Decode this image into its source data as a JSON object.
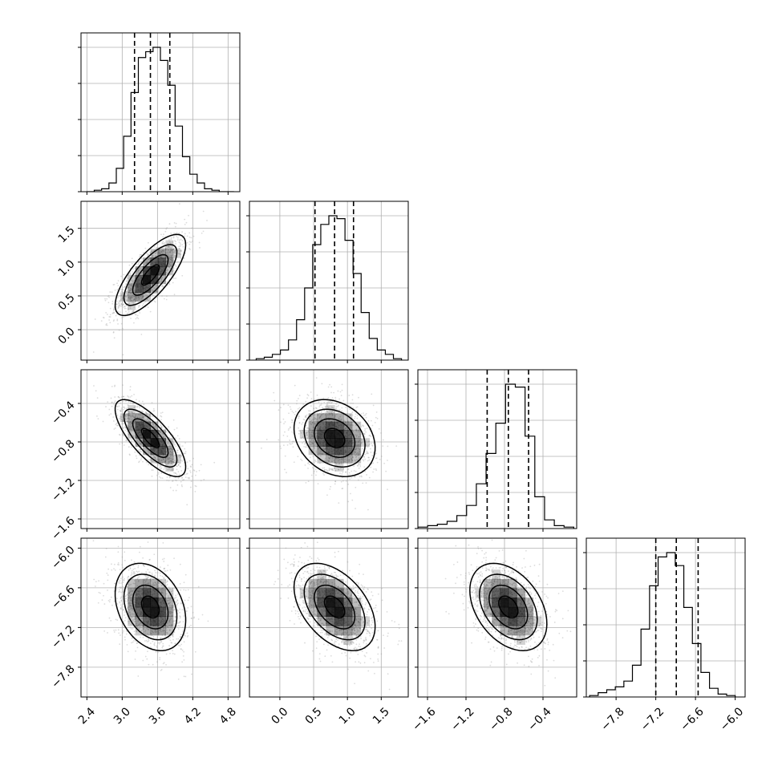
{
  "chart_data": {
    "type": "corner",
    "title": "",
    "num_parameters": 4,
    "parameters": [
      {
        "index": 0,
        "xlim": [
          2.3,
          5.0
        ],
        "ticks": [
          2.4,
          3.0,
          3.6,
          4.2,
          4.8
        ],
        "tick_labels": [
          "2.4",
          "3.0",
          "3.6",
          "4.2",
          "4.8"
        ],
        "mean": 3.48,
        "sd": 0.3,
        "quantiles": [
          3.21,
          3.48,
          3.81
        ],
        "histogram": {
          "edges_range": [
            2.4,
            4.9
          ],
          "counts": [
            0,
            1,
            2,
            6,
            16,
            38,
            68,
            92,
            96,
            99,
            90,
            73,
            45,
            24,
            12,
            6,
            2,
            1,
            0,
            0
          ]
        }
      },
      {
        "index": 1,
        "xlim": [
          -0.45,
          1.9
        ],
        "ticks": [
          0.0,
          0.5,
          1.0,
          1.5
        ],
        "tick_labels": [
          "0.0",
          "0.5",
          "1.0",
          "1.5"
        ],
        "mean": 0.81,
        "sd": 0.3,
        "quantiles": [
          0.52,
          0.81,
          1.09
        ],
        "histogram": {
          "edges_range": [
            -0.35,
            1.8
          ],
          "counts": [
            1,
            2,
            4,
            7,
            14,
            28,
            50,
            80,
            94,
            100,
            98,
            83,
            60,
            33,
            15,
            7,
            4,
            1
          ]
        }
      },
      {
        "index": 2,
        "xlim": [
          -1.7,
          -0.05
        ],
        "ticks": [
          -1.6,
          -1.2,
          -0.8,
          -0.4
        ],
        "tick_labels": [
          "−1.6",
          "−1.2",
          "−0.8",
          "−0.4"
        ],
        "mean": -0.76,
        "sd": 0.2,
        "quantiles": [
          -0.98,
          -0.76,
          -0.55
        ],
        "histogram": {
          "edges_range": [
            -1.7,
            -0.08
          ],
          "counts": [
            1,
            2,
            3,
            5,
            9,
            16,
            31,
            52,
            73,
            100,
            98,
            64,
            22,
            6,
            2,
            1
          ]
        }
      },
      {
        "index": 3,
        "xlim": [
          -8.25,
          -5.85
        ],
        "ticks": [
          -7.8,
          -7.2,
          -6.6,
          -6.0
        ],
        "tick_labels": [
          "−7.8",
          "−7.2",
          "−6.6",
          "−6.0"
        ],
        "mean": -6.89,
        "sd": 0.33,
        "quantiles": [
          -7.2,
          -6.89,
          -6.56
        ],
        "histogram": {
          "edges_range": [
            -8.2,
            -6.0
          ],
          "counts": [
            1,
            3,
            5,
            7,
            11,
            22,
            47,
            77,
            97,
            100,
            91,
            62,
            37,
            17,
            6,
            2,
            1
          ]
        }
      }
    ],
    "correlations": [
      [
        1.0,
        0.75,
        -0.75,
        -0.3
      ],
      [
        0.75,
        1.0,
        -0.25,
        -0.45
      ],
      [
        -0.75,
        -0.25,
        1.0,
        -0.38
      ],
      [
        -0.3,
        -0.45,
        -0.38,
        1.0
      ]
    ],
    "contour_levels": [
      "0.5 sigma",
      "1 sigma",
      "1.5 sigma",
      "2 sigma"
    ],
    "grid": true,
    "ylim_diagonal": [
      0,
      1.1
    ],
    "colors": {
      "line": "#000000",
      "grid": "#b0b0b0",
      "density": "#000000",
      "scatter": "#9a9a9a"
    }
  }
}
